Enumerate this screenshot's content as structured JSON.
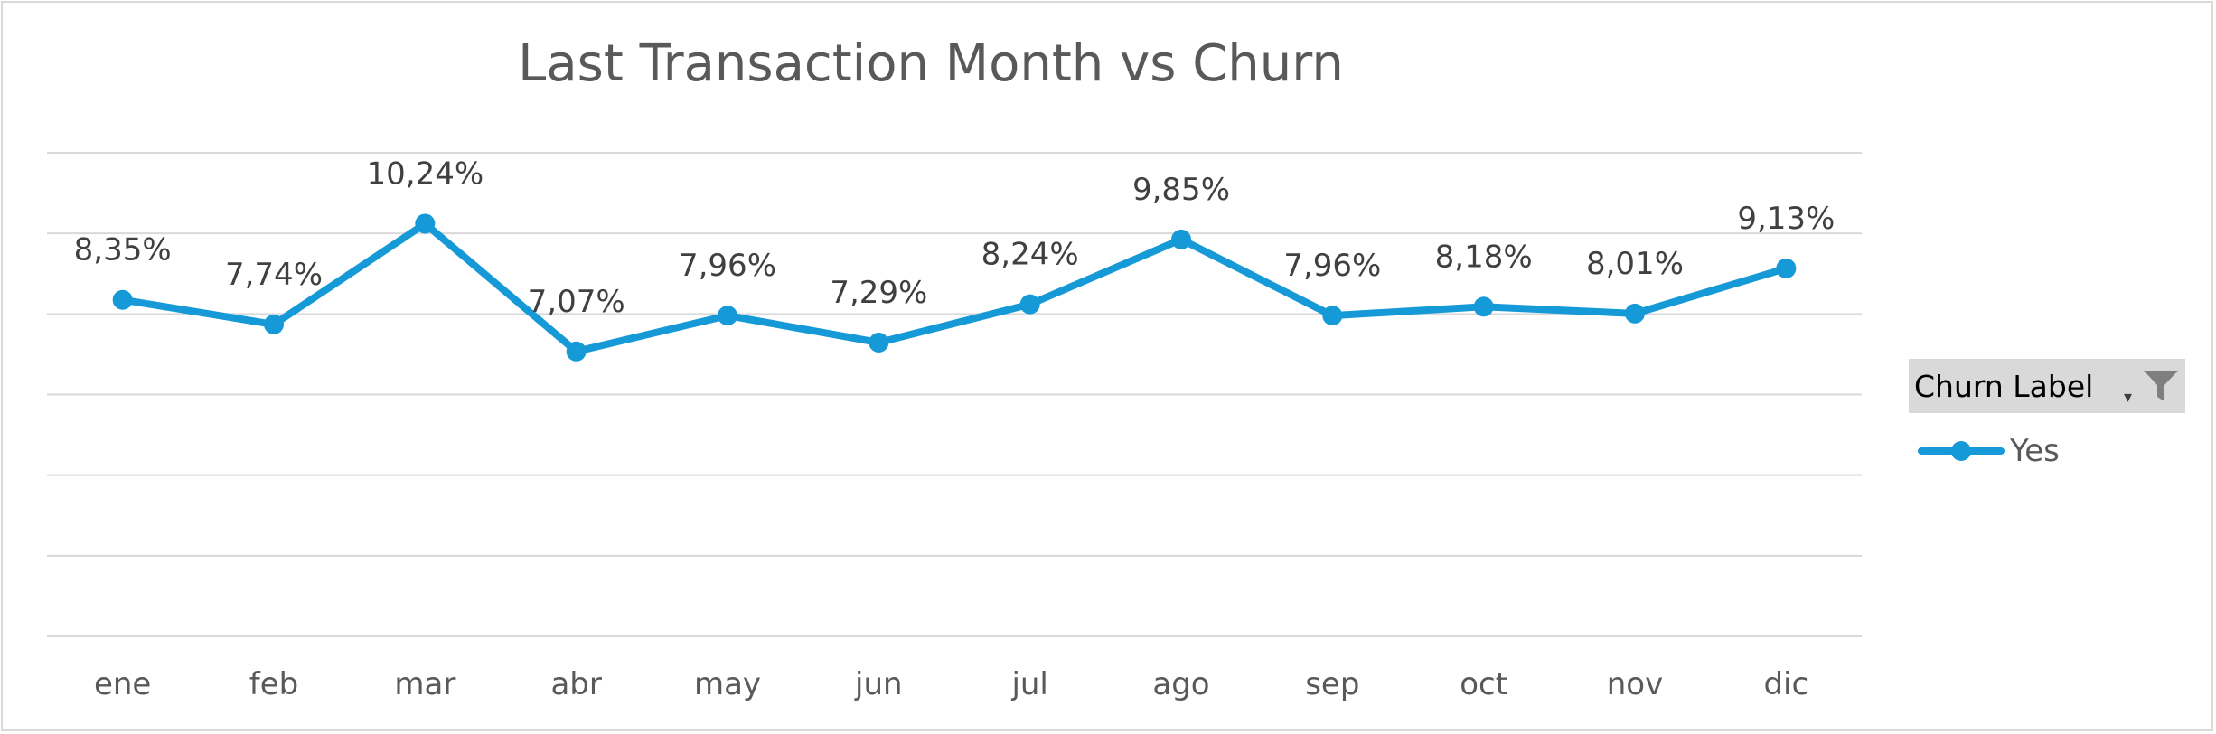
{
  "chart_data": {
    "type": "line",
    "title": "Last Transaction Month vs Churn",
    "categories": [
      "ene",
      "feb",
      "mar",
      "abr",
      "may",
      "jun",
      "jul",
      "ago",
      "sep",
      "oct",
      "nov",
      "dic"
    ],
    "series": [
      {
        "name": "Yes",
        "values": [
          8.35,
          7.74,
          10.24,
          7.07,
          7.96,
          7.29,
          8.24,
          9.85,
          7.96,
          8.18,
          8.01,
          9.13
        ],
        "labels": [
          "8,35%",
          "7,74%",
          "10,24%",
          "7,07%",
          "7,96%",
          "7,29%",
          "8,24%",
          "9,85%",
          "7,96%",
          "8,18%",
          "8,01%",
          "9,13%"
        ],
        "color": "#159ad7"
      }
    ],
    "ylim": [
      0,
      12
    ],
    "grid": true,
    "legend_position": "right",
    "legend_title": "Churn Label"
  }
}
